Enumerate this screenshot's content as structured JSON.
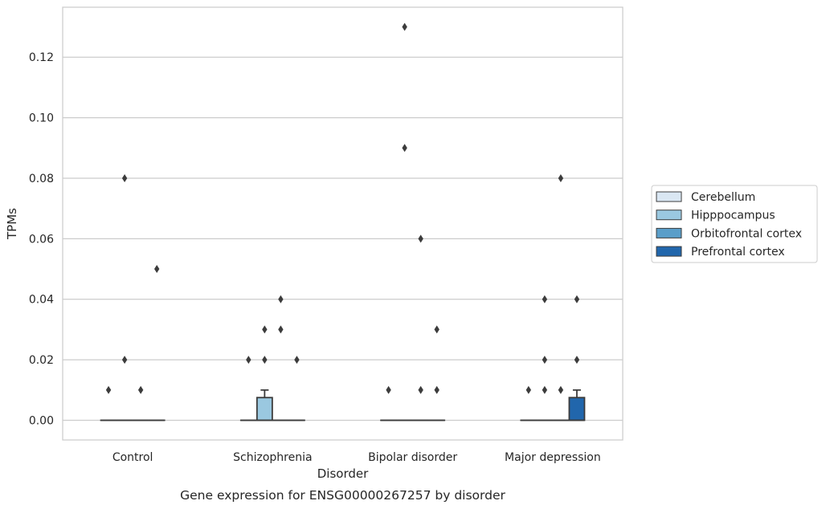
{
  "chart_data": {
    "type": "box",
    "title": "",
    "caption": "Gene expression for ENSG00000267257 by disorder",
    "xlabel": "Disorder",
    "ylabel": "TPMs",
    "ylim": [
      -0.0065,
      0.1365
    ],
    "yticks": [
      "0.00",
      "0.02",
      "0.04",
      "0.06",
      "0.08",
      "0.10",
      "0.12"
    ],
    "grid": "horizontal",
    "legend_position": "right",
    "categories": [
      "Control",
      "Schizophrenia",
      "Bipolar disorder",
      "Major depression"
    ],
    "series": [
      {
        "name": "Cerebellum",
        "color": "#dae7f3",
        "boxes": [
          {
            "q1": 0,
            "median": 0,
            "q3": 0,
            "whisker_low": 0,
            "whisker_high": 0,
            "outliers": [
              0.01
            ]
          },
          {
            "q1": 0,
            "median": 0,
            "q3": 0,
            "whisker_low": 0,
            "whisker_high": 0,
            "outliers": [
              0.02
            ]
          },
          {
            "q1": 0,
            "median": 0,
            "q3": 0,
            "whisker_low": 0,
            "whisker_high": 0,
            "outliers": [
              0.01
            ]
          },
          {
            "q1": 0,
            "median": 0,
            "q3": 0,
            "whisker_low": 0,
            "whisker_high": 0,
            "outliers": [
              0.01
            ]
          }
        ]
      },
      {
        "name": "Hipppocampus",
        "color": "#9ac8e0",
        "boxes": [
          {
            "q1": 0,
            "median": 0,
            "q3": 0,
            "whisker_low": 0,
            "whisker_high": 0,
            "outliers": [
              0.02,
              0.08
            ]
          },
          {
            "q1": 0,
            "median": 0,
            "q3": 0.0075,
            "whisker_low": 0,
            "whisker_high": 0.01,
            "outliers": [
              0.02,
              0.03
            ]
          },
          {
            "q1": 0,
            "median": 0,
            "q3": 0,
            "whisker_low": 0,
            "whisker_high": 0,
            "outliers": [
              0.09,
              0.13
            ]
          },
          {
            "q1": 0,
            "median": 0,
            "q3": 0,
            "whisker_low": 0,
            "whisker_high": 0,
            "outliers": [
              0.01,
              0.02,
              0.04
            ]
          }
        ]
      },
      {
        "name": "Orbitofrontal cortex",
        "color": "#5a9ec9",
        "boxes": [
          {
            "q1": 0,
            "median": 0,
            "q3": 0,
            "whisker_low": 0,
            "whisker_high": 0,
            "outliers": [
              0.01
            ]
          },
          {
            "q1": 0,
            "median": 0,
            "q3": 0,
            "whisker_low": 0,
            "whisker_high": 0,
            "outliers": [
              0.03,
              0.04
            ]
          },
          {
            "q1": 0,
            "median": 0,
            "q3": 0,
            "whisker_low": 0,
            "whisker_high": 0,
            "outliers": [
              0.01,
              0.06
            ]
          },
          {
            "q1": 0,
            "median": 0,
            "q3": 0,
            "whisker_low": 0,
            "whisker_high": 0,
            "outliers": [
              0.01,
              0.08
            ]
          }
        ]
      },
      {
        "name": "Prefrontal cortex",
        "color": "#2166ac",
        "boxes": [
          {
            "q1": 0,
            "median": 0,
            "q3": 0,
            "whisker_low": 0,
            "whisker_high": 0,
            "outliers": [
              0.05
            ]
          },
          {
            "q1": 0,
            "median": 0,
            "q3": 0,
            "whisker_low": 0,
            "whisker_high": 0,
            "outliers": [
              0.02
            ]
          },
          {
            "q1": 0,
            "median": 0,
            "q3": 0,
            "whisker_low": 0,
            "whisker_high": 0,
            "outliers": [
              0.01,
              0.03
            ]
          },
          {
            "q1": 0,
            "median": 0,
            "q3": 0.0075,
            "whisker_low": 0,
            "whisker_high": 0.01,
            "outliers": [
              0.02,
              0.04
            ]
          }
        ]
      }
    ]
  }
}
